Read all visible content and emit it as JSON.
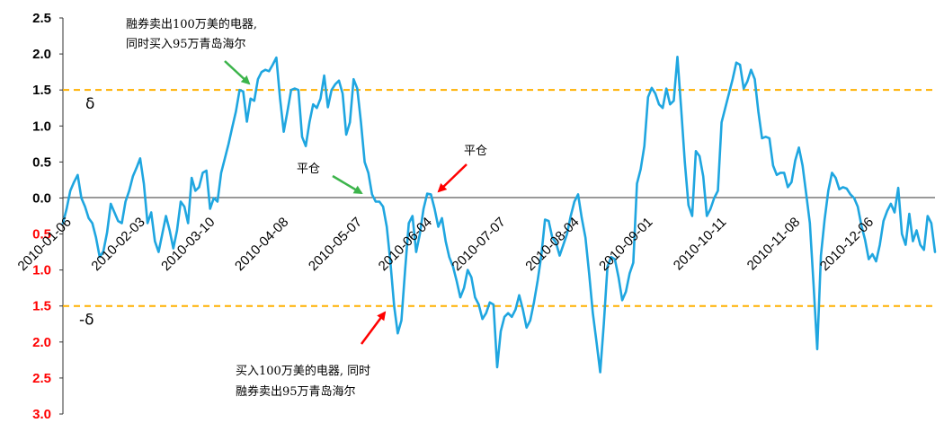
{
  "chart_data": {
    "type": "line",
    "title": "",
    "xlabel": "",
    "ylabel": "",
    "ylim": [
      -3.0,
      2.5
    ],
    "y_ticks": [
      {
        "value": 2.5,
        "label": "2.5"
      },
      {
        "value": 2.0,
        "label": "2.0"
      },
      {
        "value": 1.5,
        "label": "1.5"
      },
      {
        "value": 1.0,
        "label": "1.0"
      },
      {
        "value": 0.5,
        "label": "0.5"
      },
      {
        "value": 0.0,
        "label": "0.0"
      },
      {
        "value": -0.5,
        "label": "0.5"
      },
      {
        "value": -1.0,
        "label": "1.0"
      },
      {
        "value": -1.5,
        "label": "1.5"
      },
      {
        "value": -2.0,
        "label": "2.0"
      },
      {
        "value": -2.5,
        "label": "2.5"
      },
      {
        "value": -3.0,
        "label": "3.0"
      }
    ],
    "x_ticks": [
      {
        "index": 0,
        "label": "2010-01-06"
      },
      {
        "index": 20,
        "label": "2010-02-03"
      },
      {
        "index": 39,
        "label": "2010-03-10"
      },
      {
        "index": 59,
        "label": "2010-04-08"
      },
      {
        "index": 79,
        "label": "2010-05-07"
      },
      {
        "index": 98,
        "label": "2010-06-04"
      },
      {
        "index": 118,
        "label": "2010-07-07"
      },
      {
        "index": 138,
        "label": "2010-08-04"
      },
      {
        "index": 158,
        "label": "2010-09-01"
      },
      {
        "index": 178,
        "label": "2010-10-11"
      },
      {
        "index": 198,
        "label": "2010-11-08"
      },
      {
        "index": 218,
        "label": "2010-12-06"
      }
    ],
    "x_count": 238,
    "series": [
      {
        "values": [
          -0.35,
          -0.15,
          0.1,
          0.22,
          0.32,
          0.0,
          -0.12,
          -0.28,
          -0.35,
          -0.55,
          -0.82,
          -0.74,
          -0.48,
          -0.08,
          -0.2,
          -0.32,
          -0.35,
          -0.05,
          0.1,
          0.3,
          0.42,
          0.55,
          0.2,
          -0.35,
          -0.2,
          -0.6,
          -0.75,
          -0.5,
          -0.25,
          -0.45,
          -0.7,
          -0.45,
          -0.05,
          -0.12,
          -0.35,
          0.28,
          0.1,
          0.15,
          0.35,
          0.38,
          -0.15,
          0.0,
          -0.05,
          0.35,
          0.55,
          0.75,
          0.98,
          1.2,
          1.5,
          1.48,
          1.06,
          1.38,
          1.35,
          1.65,
          1.75,
          1.78,
          1.76,
          1.85,
          1.95,
          1.38,
          0.92,
          1.2,
          1.5,
          1.52,
          1.5,
          0.85,
          0.72,
          1.05,
          1.3,
          1.25,
          1.38,
          1.7,
          1.26,
          1.5,
          1.58,
          1.63,
          1.45,
          0.88,
          1.05,
          1.65,
          1.52,
          1.05,
          0.5,
          0.35,
          0.05,
          -0.05,
          -0.05,
          -0.12,
          -0.4,
          -0.9,
          -1.5,
          -1.88,
          -1.7,
          -1.0,
          -0.35,
          -0.25,
          -0.75,
          -0.5,
          -0.15,
          0.06,
          0.05,
          -0.15,
          -0.4,
          -0.28,
          -0.6,
          -0.82,
          -0.95,
          -1.15,
          -1.38,
          -1.25,
          -1.0,
          -1.1,
          -1.38,
          -1.48,
          -1.68,
          -1.6,
          -1.45,
          -1.48,
          -2.35,
          -1.85,
          -1.65,
          -1.6,
          -1.65,
          -1.55,
          -1.35,
          -1.55,
          -1.8,
          -1.7,
          -1.45,
          -1.15,
          -0.8,
          -0.3,
          -0.32,
          -0.55,
          -0.62,
          -0.8,
          -0.65,
          -0.5,
          -0.25,
          -0.05,
          0.05,
          -0.28,
          -0.55,
          -1.05,
          -1.6,
          -2.0,
          -2.42,
          -1.75,
          -0.95,
          -0.82,
          -0.85,
          -1.1,
          -1.42,
          -1.3,
          -1.05,
          -0.9,
          0.2,
          0.4,
          0.72,
          1.4,
          1.53,
          1.45,
          1.3,
          1.25,
          1.52,
          1.3,
          1.35,
          1.96,
          1.25,
          0.5,
          -0.1,
          -0.25,
          0.65,
          0.58,
          0.3,
          -0.25,
          -0.15,
          0.0,
          0.1,
          1.05,
          1.25,
          1.45,
          1.65,
          1.88,
          1.85,
          1.52,
          1.62,
          1.78,
          1.65,
          1.2,
          0.83,
          0.85,
          0.83,
          0.45,
          0.32,
          0.35,
          0.35,
          0.15,
          0.22,
          0.52,
          0.7,
          0.45,
          0.05,
          -0.35,
          -1.2,
          -2.1,
          -0.8,
          -0.3,
          0.1,
          0.35,
          0.28,
          0.12,
          0.15,
          0.13,
          0.05,
          0.0,
          -0.12,
          -0.38,
          -0.58,
          -0.85,
          -0.78,
          -0.88,
          -0.65,
          -0.32,
          -0.18,
          -0.08,
          -0.2,
          0.14,
          -0.5,
          -0.65,
          -0.22,
          -0.6,
          -0.45,
          -0.65,
          -0.72,
          -0.25,
          -0.35,
          -0.75
        ],
        "color": "#1fa6e0"
      }
    ],
    "threshold_lines": [
      {
        "value": 1.5,
        "label": "δ",
        "color": "#ffb000"
      },
      {
        "value": -1.5,
        "label": "-δ",
        "color": "#ffb000"
      }
    ],
    "annotations": {
      "sell_top": {
        "line1": "融券卖出100万美的电器,",
        "line2": "同时买入95万青岛海尔"
      },
      "close_left": "平仓",
      "close_right": "平仓",
      "buy_bottom": {
        "line1": "买入100万美的电器, 同时",
        "line2": "融券卖出95万青岛海尔"
      }
    },
    "colors": {
      "pos_tick": "#000000",
      "neg_tick": "#ff0000",
      "arrow_green": "#3cb44b",
      "arrow_red": "#ff0000"
    }
  }
}
